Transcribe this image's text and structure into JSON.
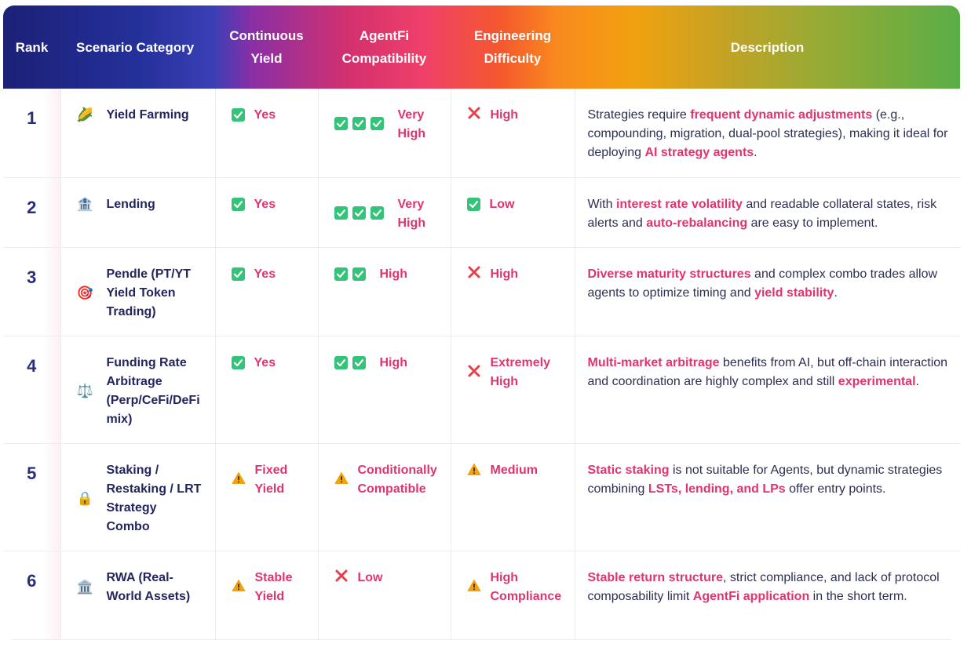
{
  "header": {
    "rank": "Rank",
    "scenario": "Scenario Category",
    "yield_l1": "Continuous",
    "yield_l2": "Yield",
    "agentfi_l1": "AgentFi",
    "agentfi_l2": "Compatibility",
    "eng_l1": "Engineering",
    "eng_l2": "Difficulty",
    "desc": "Description"
  },
  "colors": {
    "highlight": "#e0356c",
    "check": "#33c47a",
    "cross": "#e63f4a",
    "warn": "#f2a20c"
  },
  "rows": [
    {
      "rank": "1",
      "icon": "corn-icon",
      "emoji": "🌽",
      "scenario_lines": [
        "Yield Farming"
      ],
      "yield": {
        "icon": "check",
        "text": "Yes"
      },
      "agentfi": {
        "checks": 3,
        "lines": [
          "Very",
          "High"
        ]
      },
      "eng": {
        "icon": "cross",
        "lines": [
          "High"
        ]
      },
      "desc": [
        {
          "t": "Strategies require "
        },
        {
          "t": "frequent dynamic adjustments",
          "h": true
        },
        {
          "t": " (e.g., compounding, migration, dual-pool strategies), making it ideal for deploying "
        },
        {
          "t": "AI strategy agents",
          "h": true
        },
        {
          "t": "."
        }
      ]
    },
    {
      "rank": "2",
      "icon": "bank-icon",
      "emoji": "🏦",
      "scenario_lines": [
        "Lending"
      ],
      "yield": {
        "icon": "check",
        "text": "Yes"
      },
      "agentfi": {
        "checks": 3,
        "lines": [
          "Very",
          "High"
        ]
      },
      "eng": {
        "icon": "check",
        "lines": [
          "Low"
        ]
      },
      "desc": [
        {
          "t": "With "
        },
        {
          "t": "interest rate volatility",
          "h": true
        },
        {
          "t": " and readable collateral states, risk alerts and "
        },
        {
          "t": "auto-rebalancing",
          "h": true
        },
        {
          "t": " are easy to implement."
        }
      ]
    },
    {
      "rank": "3",
      "icon": "target-icon",
      "emoji": "🎯",
      "scenario_lines": [
        "Pendle (PT/YT",
        "Yield Token",
        "Trading)"
      ],
      "yield": {
        "icon": "check",
        "text": "Yes"
      },
      "agentfi": {
        "checks": 2,
        "lines": [
          "High"
        ]
      },
      "eng": {
        "icon": "cross",
        "lines": [
          "High"
        ]
      },
      "desc": [
        {
          "t": "Diverse maturity structures",
          "h": true
        },
        {
          "t": " and complex combo trades allow agents to optimize timing and "
        },
        {
          "t": "yield stability",
          "h": true
        },
        {
          "t": "."
        }
      ]
    },
    {
      "rank": "4",
      "icon": "balance-scale-icon",
      "emoji": "⚖️",
      "scenario_lines": [
        "Funding Rate",
        "Arbitrage",
        "(Perp/CeFi/DeFi",
        "mix)"
      ],
      "yield": {
        "icon": "check",
        "text": "Yes"
      },
      "agentfi": {
        "checks": 2,
        "lines": [
          "High"
        ]
      },
      "eng": {
        "icon": "cross",
        "lines": [
          "Extremely",
          "High"
        ]
      },
      "desc": [
        {
          "t": "Multi-market arbitrage",
          "h": true
        },
        {
          "t": " benefits from AI, but off-chain interaction and coordination are highly complex and still "
        },
        {
          "t": "experimental",
          "h": true
        },
        {
          "t": "."
        }
      ]
    },
    {
      "rank": "5",
      "icon": "lock-icon",
      "emoji": "🔒",
      "scenario_lines": [
        "Staking /",
        "Restaking / LRT",
        "Strategy",
        "Combo"
      ],
      "yield": {
        "icon": "warn",
        "text_lines": [
          "Fixed",
          "Yield"
        ]
      },
      "agentfi": {
        "checks": 0,
        "warn": true,
        "lines": [
          "Conditionally",
          "Compatible"
        ]
      },
      "eng": {
        "icon": "warn",
        "lines": [
          "Medium"
        ]
      },
      "desc": [
        {
          "t": "Static staking",
          "h": true
        },
        {
          "t": " is not suitable for Agents, but dynamic strategies combining "
        },
        {
          "t": "LSTs, lending, and LPs",
          "h": true
        },
        {
          "t": " offer entry points."
        }
      ]
    },
    {
      "rank": "6",
      "icon": "bank-icon",
      "emoji": "🏛️",
      "scenario_lines": [
        "RWA (Real-",
        "World Assets)"
      ],
      "yield": {
        "icon": "warn",
        "text_lines": [
          "Stable",
          "Yield"
        ]
      },
      "agentfi": {
        "checks": 0,
        "cross": true,
        "lines": [
          "Low"
        ]
      },
      "eng": {
        "icon": "warn",
        "lines": [
          "High",
          "Compliance"
        ]
      },
      "desc": [
        {
          "t": "Stable return structure",
          "h": true
        },
        {
          "t": ", strict compliance, and lack of protocol composability limit "
        },
        {
          "t": "AgentFi application",
          "h": true
        },
        {
          "t": " in the short term."
        }
      ]
    }
  ]
}
